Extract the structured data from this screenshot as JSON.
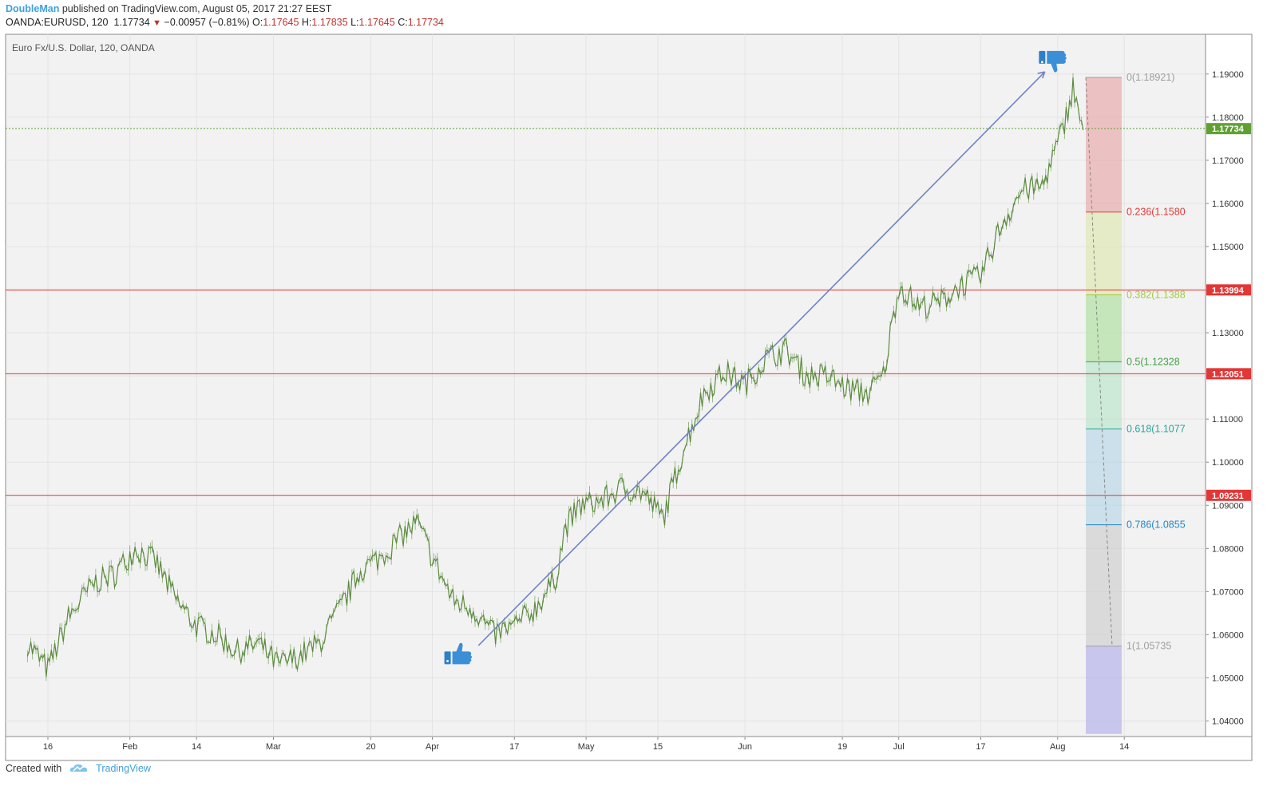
{
  "header": {
    "author": "DoubleMan",
    "published_text": "published on TradingView.com, August 05, 2017 21:27 EEST",
    "symbol": "OANDA:EURUSD, 120",
    "last": "1.17734",
    "change": "−0.00957 (−0.81%)",
    "o_label": "O:",
    "o_value": "1.17645",
    "h_label": "H:",
    "h_value": "1.17835",
    "l_label": "L:",
    "l_value": "1.17645",
    "c_label": "C:",
    "c_value": "1.17734"
  },
  "footer": {
    "created_with": "Created with",
    "brand": "TradingView",
    "logo_icon": "tradingview-cloud-icon"
  },
  "colors": {
    "candle": "#5b8c3e",
    "trendline": "#6f83c6",
    "hline": "#e33636",
    "price_tag_green": "#5fa033",
    "price_tag_red": "#e33636",
    "last_price_line": "#5fa033"
  },
  "chart_data": {
    "type": "line",
    "title": "Euro Fx/U.S. Dollar, 120, OANDA",
    "ylim": [
      1.037,
      1.1965
    ],
    "x_range_days": [
      0,
      231
    ],
    "yticks": [
      "1.04000",
      "1.05000",
      "1.06000",
      "1.07000",
      "1.08000",
      "1.09000",
      "1.10000",
      "1.11000",
      "1.12000",
      "1.13000",
      "1.14000",
      "1.15000",
      "1.16000",
      "1.17000",
      "1.18000",
      "1.19000"
    ],
    "ytick_values": [
      1.04,
      1.05,
      1.06,
      1.07,
      1.08,
      1.09,
      1.1,
      1.11,
      1.12,
      1.13,
      1.14,
      1.15,
      1.16,
      1.17,
      1.18,
      1.19
    ],
    "xticks": [
      {
        "label": "16",
        "day": 13
      },
      {
        "label": "Feb",
        "day": 29
      },
      {
        "label": "14",
        "day": 42
      },
      {
        "label": "Mar",
        "day": 57
      },
      {
        "label": "20",
        "day": 76
      },
      {
        "label": "Apr",
        "day": 88
      },
      {
        "label": "17",
        "day": 104
      },
      {
        "label": "May",
        "day": 118
      },
      {
        "label": "15",
        "day": 132
      },
      {
        "label": "Jun",
        "day": 149
      },
      {
        "label": "19",
        "day": 168
      },
      {
        "label": "Jul",
        "day": 179
      },
      {
        "label": "17",
        "day": 195
      },
      {
        "label": "Aug",
        "day": 210
      },
      {
        "label": "14",
        "day": 223
      }
    ],
    "series": [
      {
        "x": [
          "2017-01-10",
          "2017-01-14",
          "2017-01-18",
          "2017-01-23",
          "2017-01-27",
          "2017-01-31",
          "2017-02-04",
          "2017-02-08",
          "2017-02-12",
          "2017-02-16",
          "2017-02-20",
          "2017-02-24",
          "2017-02-28",
          "2017-03-04",
          "2017-03-08",
          "2017-03-12",
          "2017-03-16",
          "2017-03-20",
          "2017-03-24",
          "2017-03-27",
          "2017-03-30",
          "2017-04-03",
          "2017-04-07",
          "2017-04-11",
          "2017-04-15",
          "2017-04-19",
          "2017-04-23",
          "2017-04-25",
          "2017-04-28",
          "2017-05-02",
          "2017-05-06",
          "2017-05-10",
          "2017-05-14",
          "2017-05-18",
          "2017-05-22",
          "2017-05-26",
          "2017-05-30",
          "2017-06-03",
          "2017-06-07",
          "2017-06-11",
          "2017-06-15",
          "2017-06-19",
          "2017-06-23",
          "2017-06-26",
          "2017-06-29",
          "2017-07-03",
          "2017-07-07",
          "2017-07-11",
          "2017-07-15",
          "2017-07-19",
          "2017-07-23",
          "2017-07-27",
          "2017-07-31",
          "2017-08-02",
          "2017-08-04"
        ],
        "y": [
          1.058,
          1.052,
          1.064,
          1.072,
          1.074,
          1.08,
          1.077,
          1.068,
          1.062,
          1.06,
          1.056,
          1.058,
          1.053,
          1.055,
          1.058,
          1.066,
          1.075,
          1.078,
          1.083,
          1.086,
          1.078,
          1.068,
          1.066,
          1.06,
          1.062,
          1.066,
          1.073,
          1.085,
          1.09,
          1.091,
          1.094,
          1.093,
          1.087,
          1.103,
          1.116,
          1.121,
          1.118,
          1.124,
          1.126,
          1.12,
          1.12,
          1.117,
          1.116,
          1.12,
          1.141,
          1.136,
          1.137,
          1.141,
          1.143,
          1.155,
          1.163,
          1.164,
          1.177,
          1.187,
          1.177
        ]
      }
    ],
    "horizontal_lines": [
      1.13994,
      1.12051,
      1.09231
    ],
    "price_labels": [
      {
        "text": "1.17734",
        "value": 1.17734,
        "kind": "last"
      },
      {
        "text": "1.13994",
        "value": 1.13994,
        "kind": "level"
      },
      {
        "text": "1.12051",
        "value": 1.12051,
        "kind": "level"
      },
      {
        "text": "1.09231",
        "value": 1.09231,
        "kind": "level"
      }
    ],
    "trendline": {
      "from": {
        "day": 97,
        "value": 1.0575
      },
      "to": {
        "day": 207.5,
        "value": 1.1905
      }
    },
    "fibonacci": {
      "start_day": 215.5,
      "end_day": 222.5,
      "levels": [
        {
          "label": "0(1.18921)",
          "value": 1.18921,
          "color": "#9e9e9e",
          "fill": "#e8a6a6"
        },
        {
          "label": "0.236(1.1580",
          "value": 1.158,
          "color": "#e53935",
          "fill": "#dce7ad"
        },
        {
          "label": "0.382(1.1388",
          "value": 1.1388,
          "color": "#9ccc3a",
          "fill": "#acdf9b"
        },
        {
          "label": "0.5(1.12328",
          "value": 1.12328,
          "color": "#43a047",
          "fill": "#b9e3c9"
        },
        {
          "label": "0.618(1.1077",
          "value": 1.1077,
          "color": "#26a69a",
          "fill": "#b6d5e5"
        },
        {
          "label": "0.786(1.0855",
          "value": 1.0855,
          "color": "#1e88c6",
          "fill": "#cdcdcd"
        },
        {
          "label": "1(1.05735",
          "value": 1.05735,
          "color": "#9e9e9e",
          "fill": "#adabe6"
        }
      ],
      "below_fill": "#b0aee8",
      "below_to": 1.037
    },
    "markers": [
      {
        "icon": "thumbs-up-icon",
        "day": 93,
        "value": 1.055
      },
      {
        "icon": "thumbs-down-icon",
        "day": 209,
        "value": 1.1935
      }
    ]
  }
}
